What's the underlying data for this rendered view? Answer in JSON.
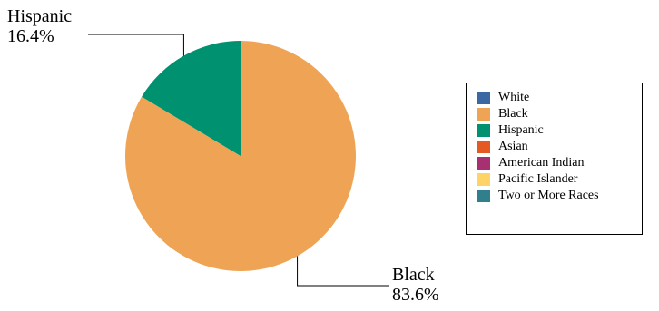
{
  "chart_data": {
    "type": "pie",
    "series": [
      {
        "name": "White",
        "value": 0.0,
        "color": "#3A68A3"
      },
      {
        "name": "Black",
        "value": 83.6,
        "color": "#EFA455"
      },
      {
        "name": "Hispanic",
        "value": 16.4,
        "color": "#009170"
      },
      {
        "name": "Asian",
        "value": 0.0,
        "color": "#E35A23"
      },
      {
        "name": "American Indian",
        "value": 0.0,
        "color": "#A73070"
      },
      {
        "name": "Pacific Islander",
        "value": 0.0,
        "color": "#FFD466"
      },
      {
        "name": "Two or More Races",
        "value": 0.0,
        "color": "#2F7F8C"
      }
    ],
    "labels": [
      {
        "series": "Hispanic",
        "name": "Hispanic",
        "percent": "16.4%"
      },
      {
        "series": "Black",
        "name": "Black",
        "percent": "83.6%"
      }
    ],
    "legend_position": "right",
    "start_angle": "top",
    "direction": "clockwise"
  }
}
